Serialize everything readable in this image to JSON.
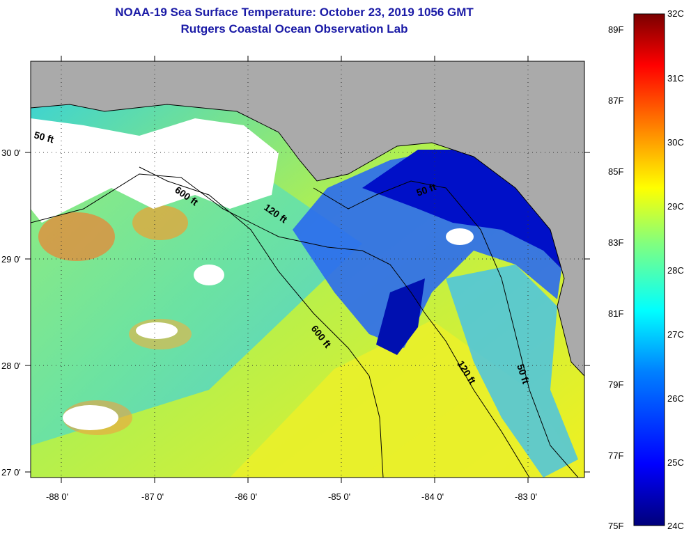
{
  "title": "NOAA-19 Sea Surface Temperature:  October 23, 2019 1056 GMT",
  "subtitle": "Rutgers Coastal Ocean Observation Lab",
  "axes": {
    "lon_ticks": [
      "-88 0'",
      "-87 0'",
      "-86 0'",
      "-85 0'",
      "-84 0'",
      "-83 0'"
    ],
    "lat_ticks": [
      "30 0'",
      "29 0'",
      "28 0'",
      "27 0'"
    ]
  },
  "contours": {
    "c50_west": "50 ft",
    "c600_north": "600 ft",
    "c120_north": "120 ft",
    "c50_bigbend": "50 ft",
    "c600_south": "600 ft",
    "c120_south": "120 ft",
    "c50_south": "50 ft"
  },
  "colorbar": {
    "fahrenheit": [
      "89F",
      "87F",
      "85F",
      "83F",
      "81F",
      "79F",
      "77F",
      "75F"
    ],
    "celsius": [
      "32C",
      "31C",
      "30C",
      "29C",
      "28C",
      "27C",
      "26C",
      "25C",
      "24C"
    ],
    "stops": [
      "#00007a",
      "#0000ff",
      "#0080ff",
      "#00ffff",
      "#80ff80",
      "#ffff00",
      "#ff8000",
      "#ff0000",
      "#7a0000"
    ]
  },
  "colors": {
    "land": "#aaaaaa",
    "cloud": "#ffffff",
    "title": "#1a1aa6"
  }
}
